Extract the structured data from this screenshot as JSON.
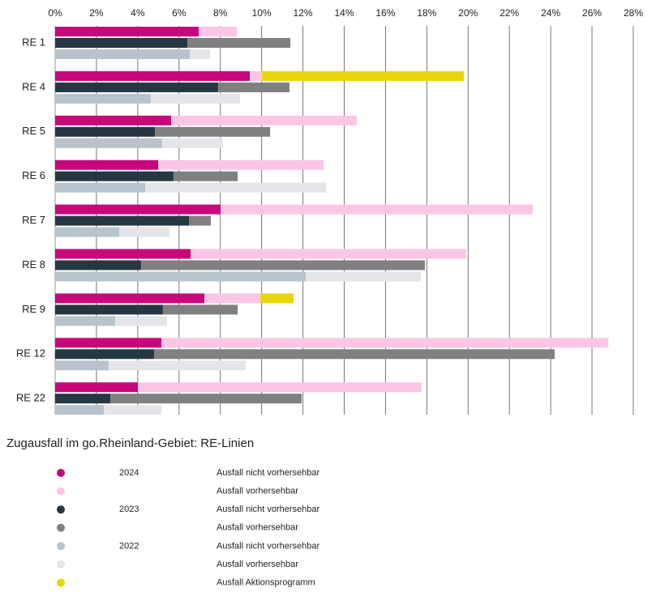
{
  "chart_data": {
    "type": "stacked-bar-horizontal",
    "title": "Zugausfall im go.Rheinland-Gebiet: RE-Linien",
    "categories": [
      "RE 1",
      "RE 4",
      "RE 5",
      "RE 6",
      "RE 7",
      "RE 8",
      "RE 9",
      "RE 12",
      "RE 22"
    ],
    "xlim": [
      0,
      28
    ],
    "xticks": [
      {
        "value": 0,
        "label": "0%"
      },
      {
        "value": 2,
        "label": "2%"
      },
      {
        "value": 4,
        "label": "4%"
      },
      {
        "value": 6,
        "label": "6%"
      },
      {
        "value": 8,
        "label": "8%"
      },
      {
        "value": 10,
        "label": "10%"
      },
      {
        "value": 12,
        "label": "12%"
      },
      {
        "value": 14,
        "label": "14%"
      },
      {
        "value": 16,
        "label": "16%"
      },
      {
        "value": 18,
        "label": "18%"
      },
      {
        "value": 20,
        "label": "20%"
      },
      {
        "value": 22,
        "label": "22%"
      },
      {
        "value": 24,
        "label": "24%"
      },
      {
        "value": 26,
        "label": "26%"
      },
      {
        "value": 28,
        "label": "28%"
      }
    ],
    "grid": true,
    "series": [
      {
        "stack": "2024",
        "name": "Ausfall nicht vorhersehbar",
        "color": "#c8077a",
        "values": [
          6.95,
          9.43,
          5.62,
          4.99,
          8.01,
          6.56,
          7.23,
          5.15,
          4.01
        ]
      },
      {
        "stack": "2024",
        "name": "Ausfall vorhersehbar",
        "color": "#fbc6e6",
        "values": [
          1.85,
          0.59,
          8.99,
          8.01,
          15.12,
          13.35,
          2.71,
          21.64,
          13.74
        ]
      },
      {
        "stack": "2023",
        "name": "Ausfall nicht vorhersehbar",
        "color": "#253741",
        "values": [
          6.4,
          7.89,
          4.83,
          5.73,
          6.48,
          4.16,
          5.22,
          4.79,
          2.67
        ]
      },
      {
        "stack": "2023",
        "name": "Ausfall vorhersehbar",
        "color": "#808080",
        "values": [
          4.99,
          3.46,
          5.58,
          3.11,
          1.06,
          13.75,
          3.62,
          19.4,
          9.27
        ]
      },
      {
        "stack": "2022",
        "name": "Ausfall nicht vorhersehbar",
        "color": "#b9c3cc",
        "values": [
          6.52,
          4.63,
          5.18,
          4.36,
          3.1,
          12.14,
          2.91,
          2.59,
          2.36
        ]
      },
      {
        "stack": "2022",
        "name": "Ausfall vorhersehbar",
        "color": "#e3e5e8",
        "values": [
          0.98,
          4.33,
          2.95,
          8.76,
          2.44,
          5.57,
          2.51,
          6.64,
          2.79
        ]
      },
      {
        "stack": "2024",
        "name": "Ausfall Aktionsprogramm",
        "color": "#e8d60a",
        "values": [
          null,
          9.78,
          null,
          null,
          null,
          null,
          1.61,
          null,
          null
        ]
      }
    ]
  }
}
